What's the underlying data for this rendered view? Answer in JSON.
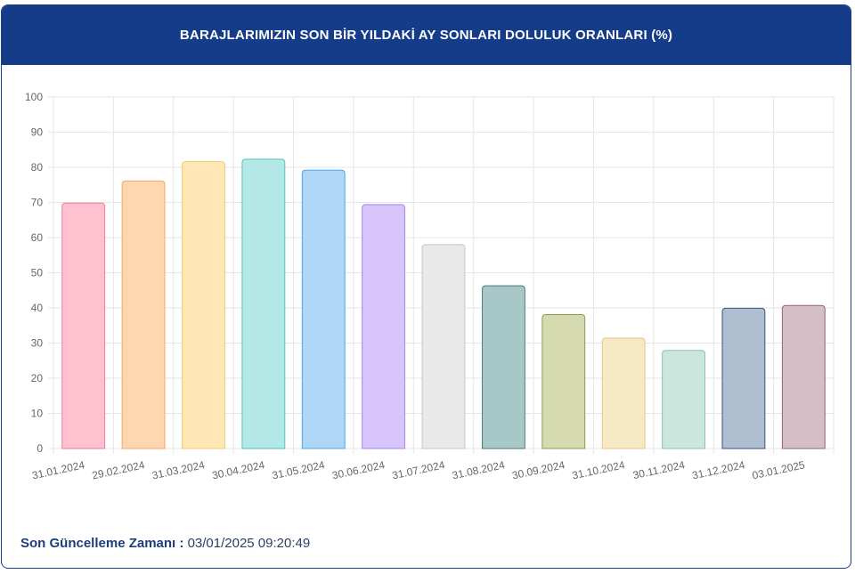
{
  "header": {
    "title": "BARAJLARIMIZIN SON BİR YILDAKİ AY SONLARI DOLULUK ORANLARI (%)"
  },
  "footer": {
    "label": "Son Güncelleme Zamanı :",
    "value": "03/01/2025 09:20:49"
  },
  "chart_data": {
    "type": "bar",
    "title": "BARAJLARIMIZIN SON BİR YILDAKİ AY SONLARI DOLULUK ORANLARI (%)",
    "xlabel": "",
    "ylabel": "",
    "ylim": [
      0,
      100
    ],
    "yticks": [
      0,
      10,
      20,
      30,
      40,
      50,
      60,
      70,
      80,
      90,
      100
    ],
    "grid": true,
    "legend": "none",
    "categories": [
      "31.01.2024",
      "29.02.2024",
      "31.03.2024",
      "30.04.2024",
      "31.05.2024",
      "30.06.2024",
      "31.07.2024",
      "31.08.2024",
      "30.09.2024",
      "31.10.2024",
      "30.11.2024",
      "31.12.2024",
      "03.01.2025"
    ],
    "values": [
      69.8,
      76.1,
      81.6,
      82.3,
      79.2,
      69.4,
      58.0,
      46.3,
      38.1,
      31.4,
      27.9,
      39.9,
      40.7
    ],
    "fill_colors": [
      "#ffc1cf",
      "#ffd7ae",
      "#ffe8b5",
      "#b3e8e6",
      "#aed7f6",
      "#d6c4fb",
      "#e9e9ea",
      "#a8c7c7",
      "#d6dab0",
      "#f7e8c6",
      "#cbe6dd",
      "#aebdd0",
      "#d6bec7"
    ],
    "border_colors": [
      "#f07b98",
      "#f4a55f",
      "#f3cc6a",
      "#4fc5c2",
      "#49a7e7",
      "#a687f0",
      "#c6c6c9",
      "#4e7a7a",
      "#8f9a50",
      "#e6c67f",
      "#86c4ae",
      "#3b557d",
      "#90657a"
    ]
  }
}
